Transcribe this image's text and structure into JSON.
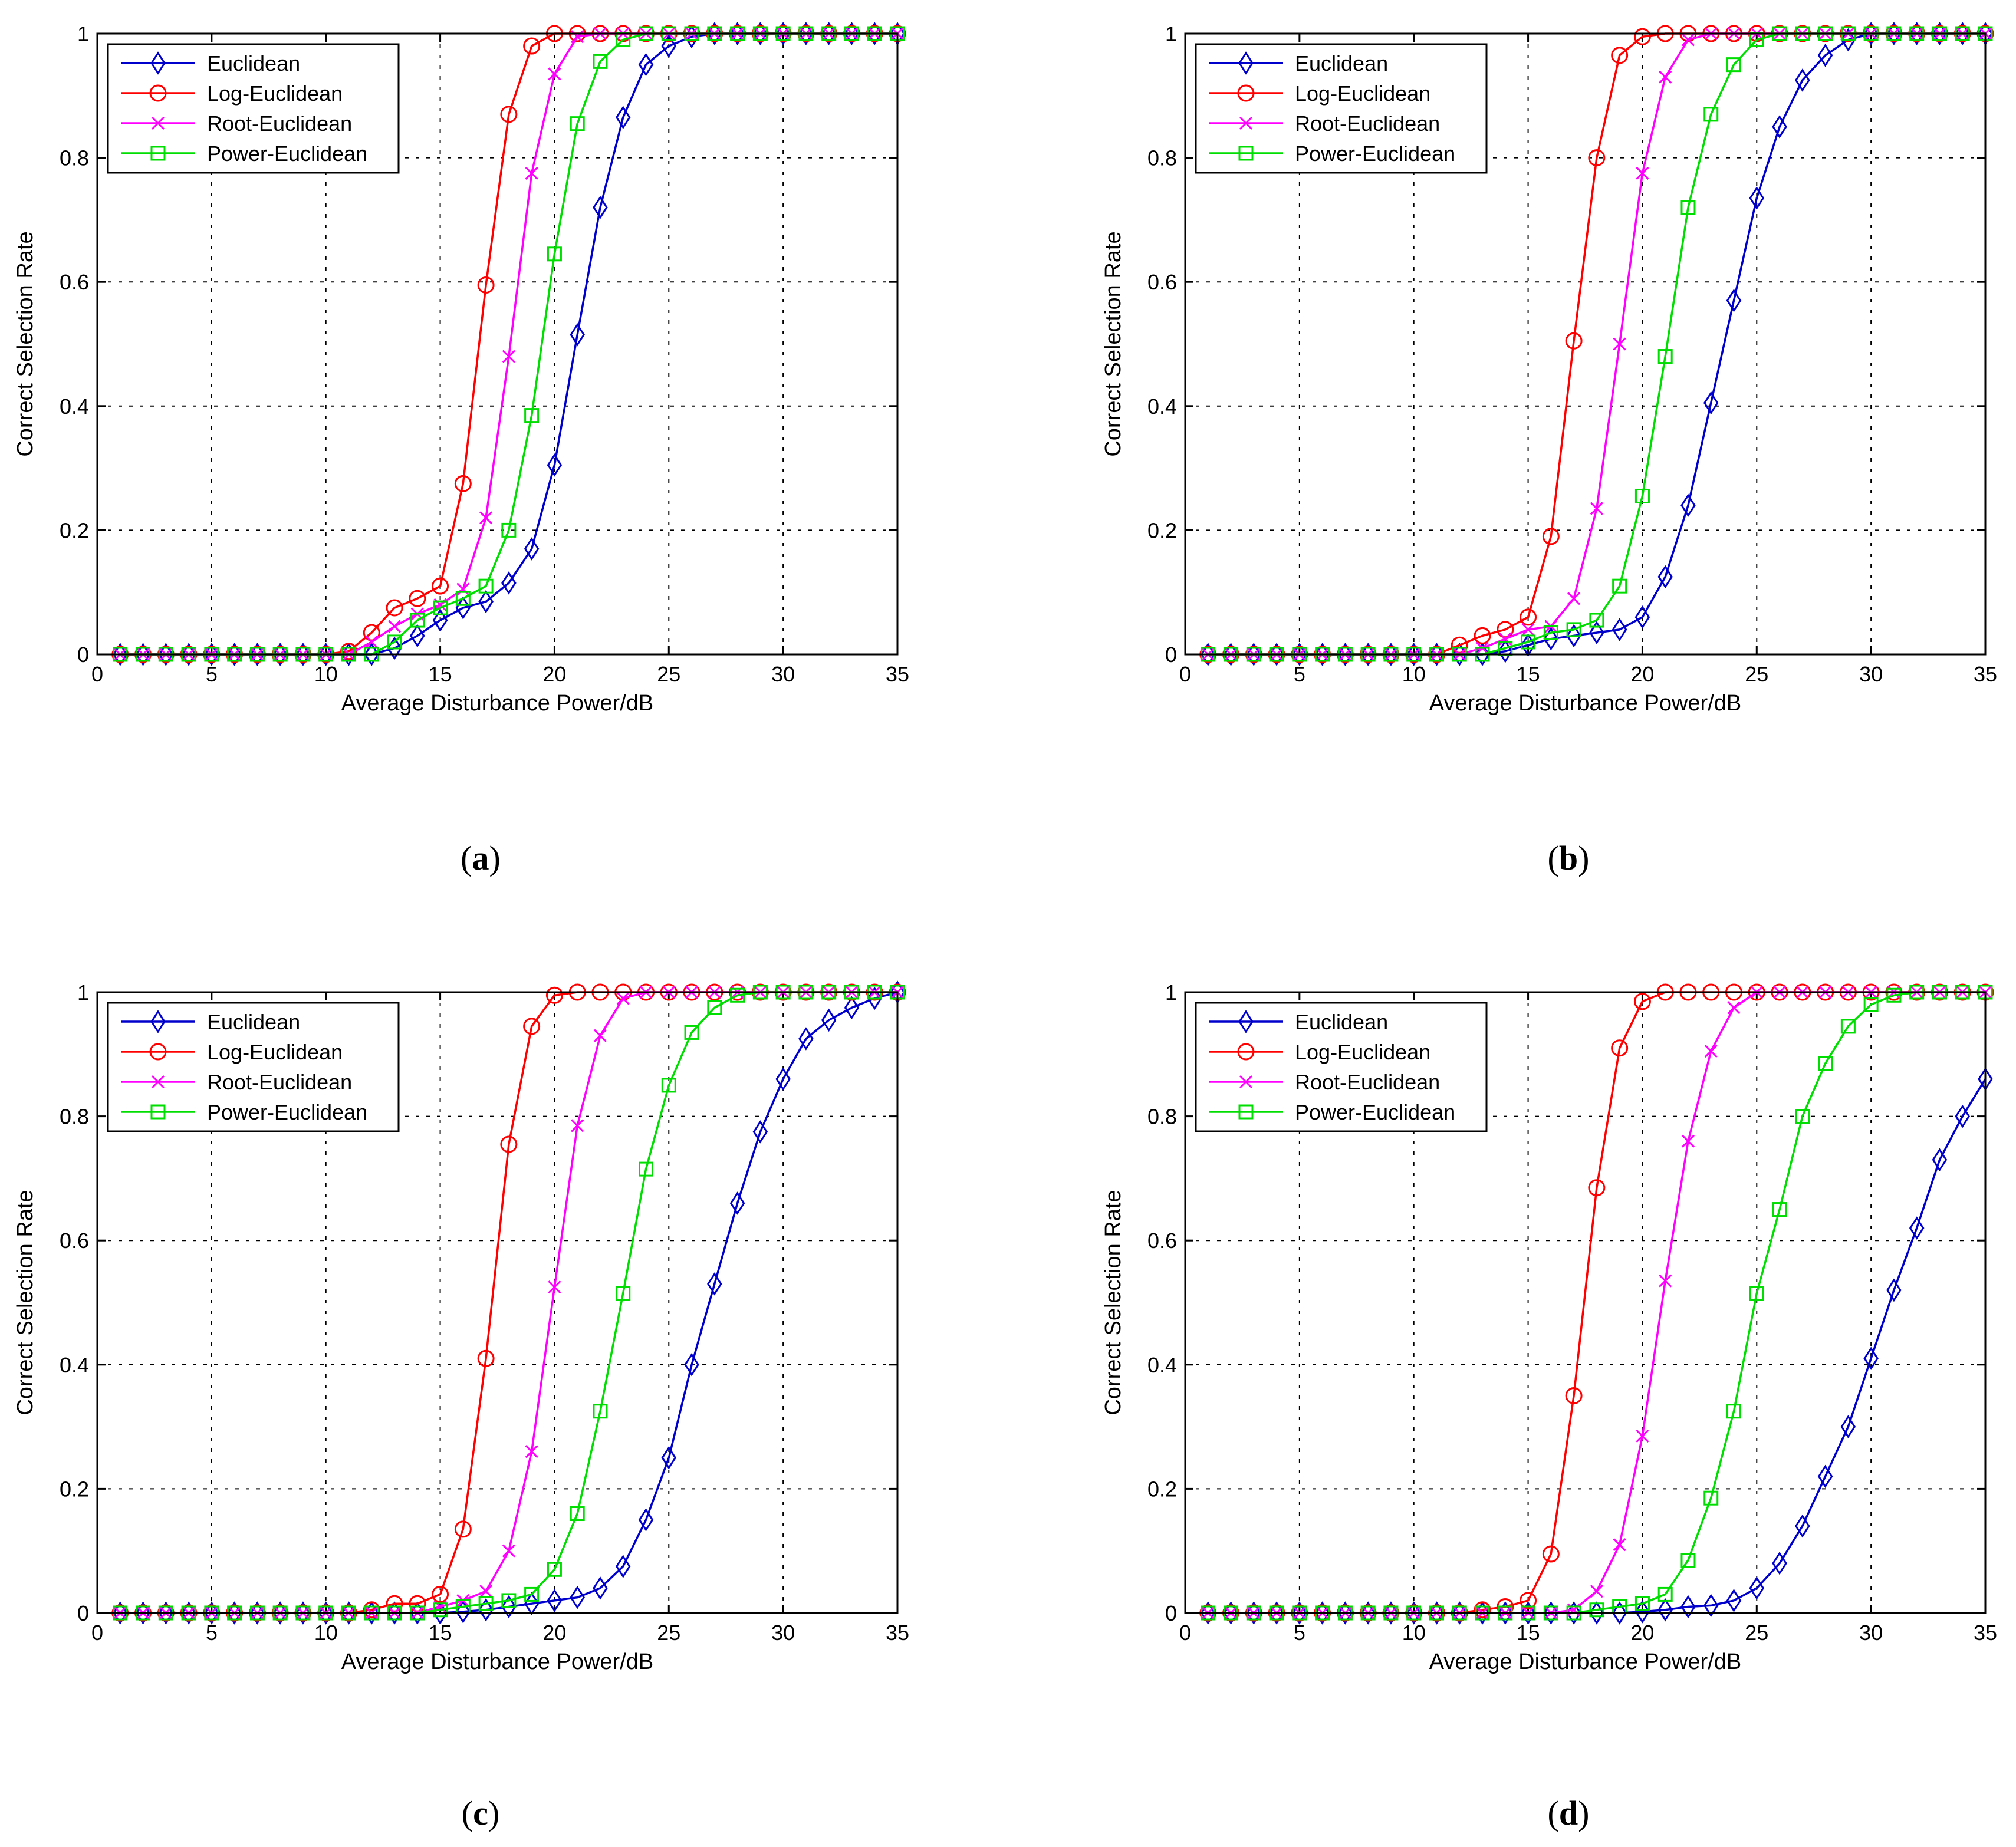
{
  "chart_data": [
    {
      "type": "line",
      "label": "a",
      "xlabel": "Average Disturbance Power/dB",
      "ylabel": "Correct Selection Rate",
      "xlim": [
        0,
        35
      ],
      "ylim": [
        0,
        1
      ],
      "xticks": [
        0,
        5,
        10,
        15,
        20,
        25,
        30,
        35
      ],
      "yticks": [
        0,
        0.2,
        0.4,
        0.6,
        0.8,
        1
      ],
      "x": [
        1,
        2,
        3,
        4,
        5,
        6,
        7,
        8,
        9,
        10,
        11,
        12,
        13,
        14,
        15,
        16,
        17,
        18,
        19,
        20,
        21,
        22,
        23,
        24,
        25,
        26,
        27,
        28,
        29,
        30,
        31,
        32,
        33,
        34,
        35
      ],
      "series": [
        {
          "name": "Euclidean",
          "color": "#0000cc",
          "marker": "diamond",
          "values": [
            0,
            0,
            0,
            0,
            0,
            0,
            0,
            0,
            0,
            0,
            0,
            0,
            0.01,
            0.03,
            0.055,
            0.075,
            0.085,
            0.115,
            0.17,
            0.305,
            0.515,
            0.72,
            0.865,
            0.95,
            0.98,
            0.995,
            1,
            1,
            1,
            1,
            1,
            1,
            1,
            1,
            1
          ]
        },
        {
          "name": "Log-Euclidean",
          "color": "#ff0000",
          "marker": "circle",
          "values": [
            0,
            0,
            0,
            0,
            0,
            0,
            0,
            0,
            0,
            0,
            0.005,
            0.035,
            0.075,
            0.09,
            0.11,
            0.275,
            0.595,
            0.87,
            0.98,
            1,
            1,
            1,
            1,
            1,
            1,
            1,
            1,
            1,
            1,
            1,
            1,
            1,
            1,
            1,
            1
          ]
        },
        {
          "name": "Root-Euclidean",
          "color": "#ff00ff",
          "marker": "x",
          "values": [
            0,
            0,
            0,
            0,
            0,
            0,
            0,
            0,
            0,
            0,
            0,
            0.02,
            0.045,
            0.065,
            0.08,
            0.105,
            0.22,
            0.48,
            0.775,
            0.935,
            0.995,
            1,
            1,
            1,
            1,
            1,
            1,
            1,
            1,
            1,
            1,
            1,
            1,
            1,
            1
          ]
        },
        {
          "name": "Power-Euclidean",
          "color": "#00dd00",
          "marker": "square",
          "values": [
            0,
            0,
            0,
            0,
            0,
            0,
            0,
            0,
            0,
            0,
            0,
            0,
            0.02,
            0.055,
            0.075,
            0.09,
            0.11,
            0.2,
            0.385,
            0.645,
            0.855,
            0.955,
            0.99,
            1,
            1,
            1,
            1,
            1,
            1,
            1,
            1,
            1,
            1,
            1,
            1
          ]
        }
      ]
    },
    {
      "type": "line",
      "label": "b",
      "xlabel": "Average Disturbance Power/dB",
      "ylabel": "Correct Selection Rate",
      "xlim": [
        0,
        35
      ],
      "ylim": [
        0,
        1
      ],
      "xticks": [
        0,
        5,
        10,
        15,
        20,
        25,
        30,
        35
      ],
      "yticks": [
        0,
        0.2,
        0.4,
        0.6,
        0.8,
        1
      ],
      "x": [
        1,
        2,
        3,
        4,
        5,
        6,
        7,
        8,
        9,
        10,
        11,
        12,
        13,
        14,
        15,
        16,
        17,
        18,
        19,
        20,
        21,
        22,
        23,
        24,
        25,
        26,
        27,
        28,
        29,
        30,
        31,
        32,
        33,
        34,
        35
      ],
      "series": [
        {
          "name": "Euclidean",
          "color": "#0000cc",
          "marker": "diamond",
          "values": [
            0,
            0,
            0,
            0,
            0,
            0,
            0,
            0,
            0,
            0,
            0,
            0,
            0,
            0.005,
            0.015,
            0.025,
            0.03,
            0.035,
            0.04,
            0.06,
            0.125,
            0.24,
            0.405,
            0.57,
            0.735,
            0.85,
            0.925,
            0.965,
            0.99,
            1,
            1,
            1,
            1,
            1,
            1
          ]
        },
        {
          "name": "Log-Euclidean",
          "color": "#ff0000",
          "marker": "circle",
          "values": [
            0,
            0,
            0,
            0,
            0,
            0,
            0,
            0,
            0,
            0,
            0,
            0.015,
            0.03,
            0.04,
            0.06,
            0.19,
            0.505,
            0.8,
            0.965,
            0.995,
            1,
            1,
            1,
            1,
            1,
            1,
            1,
            1,
            1,
            1,
            1,
            1,
            1,
            1,
            1
          ]
        },
        {
          "name": "Root-Euclidean",
          "color": "#ff00ff",
          "marker": "x",
          "values": [
            0,
            0,
            0,
            0,
            0,
            0,
            0,
            0,
            0,
            0,
            0,
            0,
            0.01,
            0.025,
            0.04,
            0.045,
            0.09,
            0.235,
            0.5,
            0.775,
            0.93,
            0.99,
            1,
            1,
            1,
            1,
            1,
            1,
            1,
            1,
            1,
            1,
            1,
            1,
            1
          ]
        },
        {
          "name": "Power-Euclidean",
          "color": "#00dd00",
          "marker": "square",
          "values": [
            0,
            0,
            0,
            0,
            0,
            0,
            0,
            0,
            0,
            0,
            0,
            0,
            0,
            0.01,
            0.02,
            0.035,
            0.04,
            0.055,
            0.11,
            0.255,
            0.48,
            0.72,
            0.87,
            0.95,
            0.99,
            1,
            1,
            1,
            1,
            1,
            1,
            1,
            1,
            1,
            1
          ]
        }
      ]
    },
    {
      "type": "line",
      "label": "c",
      "xlabel": "Average Disturbance Power/dB",
      "ylabel": "Correct Selection Rate",
      "xlim": [
        0,
        35
      ],
      "ylim": [
        0,
        1
      ],
      "xticks": [
        0,
        5,
        10,
        15,
        20,
        25,
        30,
        35
      ],
      "yticks": [
        0,
        0.2,
        0.4,
        0.6,
        0.8,
        1
      ],
      "x": [
        1,
        2,
        3,
        4,
        5,
        6,
        7,
        8,
        9,
        10,
        11,
        12,
        13,
        14,
        15,
        16,
        17,
        18,
        19,
        20,
        21,
        22,
        23,
        24,
        25,
        26,
        27,
        28,
        29,
        30,
        31,
        32,
        33,
        34,
        35
      ],
      "series": [
        {
          "name": "Euclidean",
          "color": "#0000cc",
          "marker": "diamond",
          "values": [
            0,
            0,
            0,
            0,
            0,
            0,
            0,
            0,
            0,
            0,
            0,
            0,
            0,
            0,
            0,
            0.002,
            0.005,
            0.01,
            0.015,
            0.02,
            0.025,
            0.04,
            0.075,
            0.15,
            0.25,
            0.4,
            0.53,
            0.66,
            0.775,
            0.86,
            0.925,
            0.955,
            0.975,
            0.99,
            1
          ]
        },
        {
          "name": "Log-Euclidean",
          "color": "#ff0000",
          "marker": "circle",
          "values": [
            0,
            0,
            0,
            0,
            0,
            0,
            0,
            0,
            0,
            0,
            0,
            0.005,
            0.015,
            0.015,
            0.03,
            0.135,
            0.41,
            0.755,
            0.945,
            0.995,
            1,
            1,
            1,
            1,
            1,
            1,
            1,
            1,
            1,
            1,
            1,
            1,
            1,
            1,
            1
          ]
        },
        {
          "name": "Root-Euclidean",
          "color": "#ff00ff",
          "marker": "x",
          "values": [
            0,
            0,
            0,
            0,
            0,
            0,
            0,
            0,
            0,
            0,
            0,
            0,
            0,
            0,
            0.01,
            0.02,
            0.035,
            0.1,
            0.26,
            0.525,
            0.785,
            0.93,
            0.99,
            1,
            1,
            1,
            1,
            1,
            1,
            1,
            1,
            1,
            1,
            1,
            1
          ]
        },
        {
          "name": "Power-Euclidean",
          "color": "#00dd00",
          "marker": "square",
          "values": [
            0,
            0,
            0,
            0,
            0,
            0,
            0,
            0,
            0,
            0,
            0,
            0,
            0,
            0,
            0.005,
            0.01,
            0.015,
            0.02,
            0.03,
            0.07,
            0.16,
            0.325,
            0.515,
            0.715,
            0.85,
            0.935,
            0.975,
            0.995,
            1,
            1,
            1,
            1,
            1,
            1,
            1
          ]
        }
      ]
    },
    {
      "type": "line",
      "label": "d",
      "xlabel": "Average Disturbance Power/dB",
      "ylabel": "Correct Selection Rate",
      "xlim": [
        0,
        35
      ],
      "ylim": [
        0,
        1
      ],
      "xticks": [
        0,
        5,
        10,
        15,
        20,
        25,
        30,
        35
      ],
      "yticks": [
        0,
        0.2,
        0.4,
        0.6,
        0.8,
        1
      ],
      "x": [
        1,
        2,
        3,
        4,
        5,
        6,
        7,
        8,
        9,
        10,
        11,
        12,
        13,
        14,
        15,
        16,
        17,
        18,
        19,
        20,
        21,
        22,
        23,
        24,
        25,
        26,
        27,
        28,
        29,
        30,
        31,
        32,
        33,
        34,
        35
      ],
      "series": [
        {
          "name": "Euclidean",
          "color": "#0000cc",
          "marker": "diamond",
          "values": [
            0,
            0,
            0,
            0,
            0,
            0,
            0,
            0,
            0,
            0,
            0,
            0,
            0,
            0,
            0,
            0,
            0,
            0,
            0,
            0.002,
            0.005,
            0.01,
            0.012,
            0.02,
            0.04,
            0.08,
            0.14,
            0.22,
            0.3,
            0.41,
            0.52,
            0.62,
            0.73,
            0.8,
            0.86
          ]
        },
        {
          "name": "Log-Euclidean",
          "color": "#ff0000",
          "marker": "circle",
          "values": [
            0,
            0,
            0,
            0,
            0,
            0,
            0,
            0,
            0,
            0,
            0,
            0,
            0.005,
            0.01,
            0.02,
            0.095,
            0.35,
            0.685,
            0.91,
            0.985,
            1,
            1,
            1,
            1,
            1,
            1,
            1,
            1,
            1,
            1,
            1,
            1,
            1,
            1,
            1
          ]
        },
        {
          "name": "Root-Euclidean",
          "color": "#ff00ff",
          "marker": "x",
          "values": [
            0,
            0,
            0,
            0,
            0,
            0,
            0,
            0,
            0,
            0,
            0,
            0,
            0,
            0,
            0,
            0,
            0.005,
            0.035,
            0.11,
            0.285,
            0.535,
            0.76,
            0.905,
            0.975,
            1,
            1,
            1,
            1,
            1,
            1,
            1,
            1,
            1,
            1,
            1
          ]
        },
        {
          "name": "Power-Euclidean",
          "color": "#00dd00",
          "marker": "square",
          "values": [
            0,
            0,
            0,
            0,
            0,
            0,
            0,
            0,
            0,
            0,
            0,
            0,
            0,
            0,
            0,
            0,
            0,
            0.005,
            0.01,
            0.015,
            0.03,
            0.085,
            0.185,
            0.325,
            0.515,
            0.65,
            0.8,
            0.885,
            0.945,
            0.98,
            0.995,
            1,
            1,
            1,
            1
          ]
        }
      ]
    }
  ]
}
